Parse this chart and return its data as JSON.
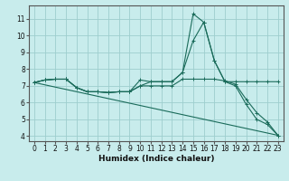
{
  "title": "",
  "xlabel": "Humidex (Indice chaleur)",
  "bg_color": "#c8ecec",
  "grid_color": "#9ecece",
  "line_color": "#1a6b5a",
  "xlim": [
    -0.5,
    23.5
  ],
  "ylim": [
    3.7,
    11.8
  ],
  "xticks": [
    0,
    1,
    2,
    3,
    4,
    5,
    6,
    7,
    8,
    9,
    10,
    11,
    12,
    13,
    14,
    15,
    16,
    17,
    18,
    19,
    20,
    21,
    22,
    23
  ],
  "yticks": [
    4,
    5,
    6,
    7,
    8,
    9,
    10,
    11
  ],
  "lines": [
    {
      "x": [
        0,
        1,
        2,
        3,
        4,
        5,
        6,
        7,
        8,
        9,
        10,
        11,
        12,
        13,
        14,
        15,
        16,
        17,
        18,
        19,
        20,
        21,
        22,
        23
      ],
      "y": [
        7.2,
        7.35,
        7.4,
        7.4,
        6.9,
        6.65,
        6.65,
        6.6,
        6.65,
        6.65,
        7.35,
        7.25,
        7.25,
        7.25,
        7.8,
        11.3,
        10.8,
        8.5,
        7.25,
        7.25,
        7.25,
        7.25,
        7.25,
        7.25
      ],
      "marker": true
    },
    {
      "x": [
        0,
        1,
        2,
        3,
        4,
        5,
        6,
        7,
        8,
        9,
        10,
        11,
        12,
        13,
        14,
        15,
        16,
        17,
        18,
        19,
        20,
        21,
        22,
        23
      ],
      "y": [
        7.2,
        7.35,
        7.4,
        7.4,
        6.9,
        6.65,
        6.65,
        6.6,
        6.65,
        6.65,
        7.0,
        7.25,
        7.25,
        7.25,
        7.8,
        9.7,
        10.8,
        8.5,
        7.25,
        7.0,
        5.9,
        5.0,
        4.7,
        4.05
      ],
      "marker": true
    },
    {
      "x": [
        0,
        1,
        2,
        3,
        4,
        5,
        6,
        7,
        8,
        9,
        10,
        11,
        12,
        13,
        14,
        15,
        16,
        17,
        18,
        19,
        20,
        21,
        22,
        23
      ],
      "y": [
        7.2,
        7.35,
        7.4,
        7.4,
        6.9,
        6.65,
        6.65,
        6.6,
        6.65,
        6.65,
        7.0,
        7.0,
        7.0,
        7.0,
        7.4,
        7.4,
        7.4,
        7.4,
        7.3,
        7.1,
        6.2,
        5.4,
        4.85,
        4.05
      ],
      "marker": true
    },
    {
      "x": [
        0,
        23
      ],
      "y": [
        7.2,
        4.05
      ],
      "marker": false
    }
  ],
  "xlabel_fontsize": 6.5,
  "tick_fontsize": 5.5
}
